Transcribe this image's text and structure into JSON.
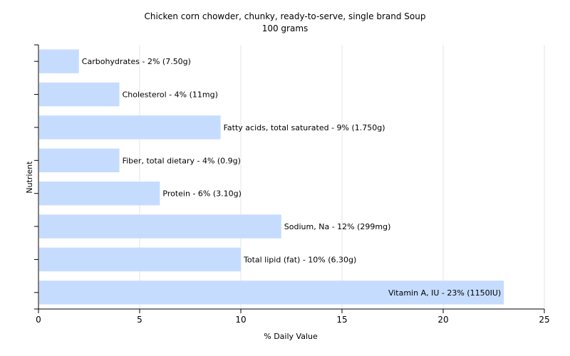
{
  "chart_data": {
    "type": "bar",
    "orientation": "horizontal",
    "title": "Chicken corn chowder, chunky, ready-to-serve, single brand Soup",
    "subtitle": "100 grams",
    "xlabel": "% Daily Value",
    "ylabel": "Nutrient",
    "xlim": [
      0,
      25
    ],
    "xticks": [
      0,
      5,
      10,
      15,
      20,
      25
    ],
    "grid": "vertical",
    "bar_color": "#c6dcff",
    "categories": [
      "Carbohydrates",
      "Cholesterol",
      "Fatty acids, total saturated",
      "Fiber, total dietary",
      "Protein",
      "Sodium, Na",
      "Total lipid (fat)",
      "Vitamin A, IU"
    ],
    "values": [
      2,
      4,
      9,
      4,
      6,
      12,
      10,
      23
    ],
    "labels": [
      "Carbohydrates - 2% (7.50g)",
      "Cholesterol - 4% (11mg)",
      "Fatty acids, total saturated - 9% (1.750g)",
      "Fiber, total dietary - 4% (0.9g)",
      "Protein - 6% (3.10g)",
      "Sodium, Na - 12% (299mg)",
      "Total lipid (fat) - 10% (6.30g)",
      "Vitamin A, IU - 23% (1150IU)"
    ]
  }
}
